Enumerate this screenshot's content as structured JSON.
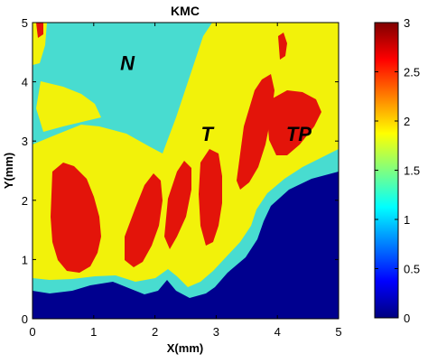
{
  "chart_data": {
    "type": "heatmap",
    "title": "KMC",
    "xlabel": "X(mm)",
    "ylabel": "Y(mm)",
    "xlim": [
      0,
      5
    ],
    "ylim": [
      0,
      5
    ],
    "xticks": [
      "0",
      "1",
      "2",
      "3",
      "4",
      "5"
    ],
    "yticks": [
      "0",
      "1",
      "2",
      "3",
      "4",
      "5"
    ],
    "colorbar": {
      "range": [
        0,
        3
      ],
      "ticks": [
        "0",
        "0.5",
        "1",
        "1.5",
        "2",
        "2.5",
        "3"
      ],
      "colormap": "jet"
    },
    "levels": [
      {
        "value": 0,
        "color": "#00008f"
      },
      {
        "value": 1,
        "color": "#48dcd0"
      },
      {
        "value": 2,
        "color": "#f2f20a"
      },
      {
        "value": 2.5,
        "color": "#e3140a"
      }
    ],
    "annotations": [
      {
        "text": "N",
        "x": 1.55,
        "y": 4.2
      },
      {
        "text": "T",
        "x": 2.85,
        "y": 3.0
      },
      {
        "text": "TP",
        "x": 4.35,
        "y": 3.0
      }
    ]
  }
}
